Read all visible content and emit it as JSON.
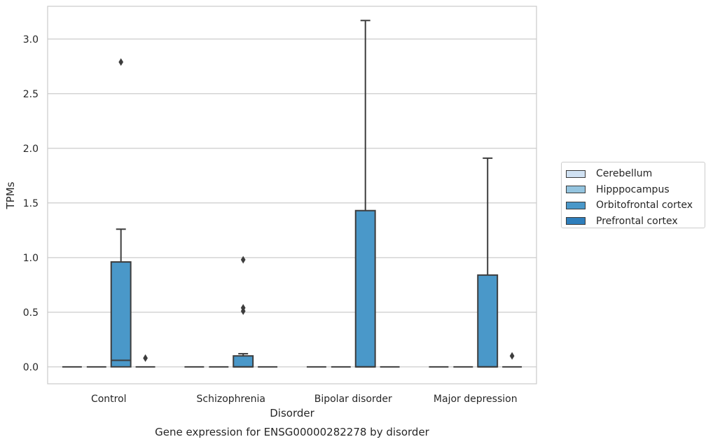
{
  "chart_data": {
    "type": "box",
    "title": "Gene expression for ENSG00000282278 by disorder",
    "xlabel": "Disorder",
    "ylabel": "TPMs",
    "ylim": [
      -0.155,
      3.3
    ],
    "yticks": [
      0.0,
      0.5,
      1.0,
      1.5,
      2.0,
      2.5,
      3.0
    ],
    "ytick_labels": [
      "0.0",
      "0.5",
      "1.0",
      "1.5",
      "2.0",
      "2.5",
      "3.0"
    ],
    "categories": [
      "Control",
      "Schizophrenia",
      "Bipolar disorder",
      "Major depression"
    ],
    "grid": "horizontal",
    "legend_position": "right",
    "series": [
      {
        "name": "Cerebellum",
        "color": "#d0e1f2",
        "boxes": [
          {
            "q1": 0,
            "median": 0,
            "q3": 0,
            "whisker_low": 0,
            "whisker_high": 0,
            "outliers": []
          },
          {
            "q1": 0,
            "median": 0,
            "q3": 0,
            "whisker_low": 0,
            "whisker_high": 0,
            "outliers": []
          },
          {
            "q1": 0,
            "median": 0,
            "q3": 0,
            "whisker_low": 0,
            "whisker_high": 0,
            "outliers": []
          },
          {
            "q1": 0,
            "median": 0,
            "q3": 0,
            "whisker_low": 0,
            "whisker_high": 0,
            "outliers": []
          }
        ]
      },
      {
        "name": "Hipppocampus",
        "color": "#94c4df",
        "boxes": [
          {
            "q1": 0,
            "median": 0,
            "q3": 0,
            "whisker_low": 0,
            "whisker_high": 0,
            "outliers": []
          },
          {
            "q1": 0,
            "median": 0,
            "q3": 0,
            "whisker_low": 0,
            "whisker_high": 0,
            "outliers": []
          },
          {
            "q1": 0,
            "median": 0,
            "q3": 0,
            "whisker_low": 0,
            "whisker_high": 0,
            "outliers": []
          },
          {
            "q1": 0,
            "median": 0,
            "q3": 0,
            "whisker_low": 0,
            "whisker_high": 0,
            "outliers": []
          }
        ]
      },
      {
        "name": "Orbitofrontal cortex",
        "color": "#4a98c9",
        "boxes": [
          {
            "q1": 0,
            "median": 0.06,
            "q3": 0.96,
            "whisker_low": 0,
            "whisker_high": 1.26,
            "outliers": [
              2.79
            ]
          },
          {
            "q1": 0,
            "median": 0,
            "q3": 0.1,
            "whisker_low": 0,
            "whisker_high": 0.12,
            "outliers": [
              0.51,
              0.54,
              0.98
            ]
          },
          {
            "q1": 0,
            "median": 0,
            "q3": 1.43,
            "whisker_low": 0,
            "whisker_high": 3.17,
            "outliers": []
          },
          {
            "q1": 0,
            "median": 0,
            "q3": 0.84,
            "whisker_low": 0,
            "whisker_high": 1.91,
            "outliers": []
          }
        ]
      },
      {
        "name": "Prefrontal cortex",
        "color": "#2e7ebc",
        "boxes": [
          {
            "q1": 0,
            "median": 0,
            "q3": 0,
            "whisker_low": 0,
            "whisker_high": 0,
            "outliers": [
              0.08
            ]
          },
          {
            "q1": 0,
            "median": 0,
            "q3": 0,
            "whisker_low": 0,
            "whisker_high": 0,
            "outliers": []
          },
          {
            "q1": 0,
            "median": 0,
            "q3": 0,
            "whisker_low": 0,
            "whisker_high": 0,
            "outliers": []
          },
          {
            "q1": 0,
            "median": 0,
            "q3": 0,
            "whisker_low": 0,
            "whisker_high": 0,
            "outliers": [
              0.1
            ]
          }
        ]
      }
    ]
  }
}
